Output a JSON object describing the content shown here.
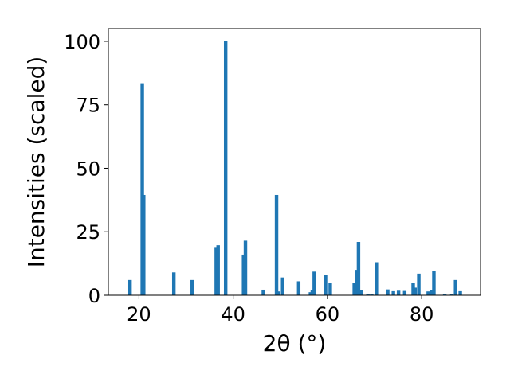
{
  "chart_data": {
    "type": "bar",
    "title": "",
    "xlabel": "2θ (°)",
    "ylabel": "Intensities (scaled)",
    "xlim": [
      13.5,
      92.5
    ],
    "ylim": [
      0,
      105
    ],
    "xticks": [
      20,
      40,
      60,
      80
    ],
    "yticks": [
      0,
      25,
      50,
      75,
      100
    ],
    "grid": false,
    "legend": "none",
    "bar_color": "#1f77b4",
    "series": [
      {
        "x": [
          18.1,
          20.7,
          21.0,
          27.4,
          31.3,
          36.4,
          36.8,
          38.4,
          42.2,
          42.6,
          46.4,
          49.2,
          49.6,
          50.5,
          53.9,
          56.4,
          56.8,
          57.2,
          59.6,
          60.6,
          65.7,
          66.2,
          66.6,
          67.1,
          68.6,
          69.4,
          70.4,
          72.8,
          74.0,
          75.1,
          76.4,
          78.2,
          78.6,
          79.4,
          81.4,
          82.2,
          82.6,
          84.9,
          86.4,
          87.2,
          88.2
        ],
        "values": [
          6,
          83.5,
          39.5,
          9,
          6,
          19,
          19.7,
          100,
          16,
          21.5,
          2.2,
          39.5,
          1.5,
          7,
          5.5,
          1.2,
          2,
          9.3,
          8,
          5,
          5,
          10,
          21,
          2,
          0.4,
          0.6,
          13,
          2.3,
          1.6,
          1.8,
          1.7,
          5,
          3,
          8.5,
          1.5,
          2,
          9.5,
          0.6,
          0.5,
          6,
          1.6
        ]
      }
    ]
  }
}
